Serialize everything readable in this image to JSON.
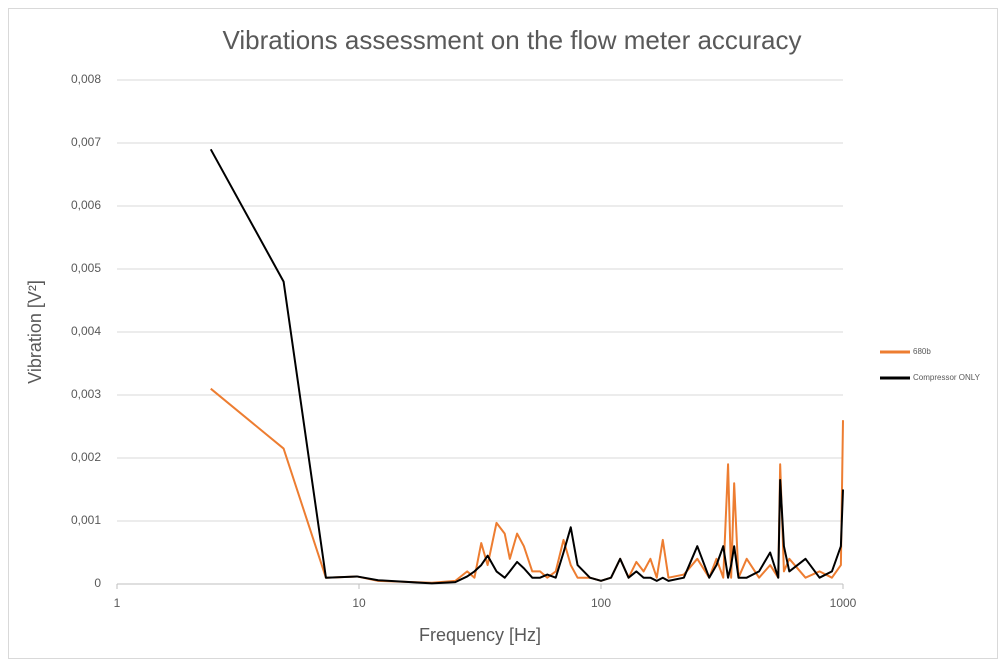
{
  "chart_data": {
    "type": "line",
    "title": "Vibrations assessment on the flow meter accuracy",
    "xlabel": "Frequency [Hz]",
    "ylabel": "Vibration [V²]",
    "xscale": "log",
    "xlim": [
      1,
      1000
    ],
    "xticks": [
      1,
      10,
      100,
      1000
    ],
    "ylim": [
      0,
      0.008
    ],
    "yticks": [
      0,
      {
        "value": 0.001,
        "label": "0,001"
      },
      {
        "value": 0.002,
        "label": "0,002"
      },
      {
        "value": 0.003,
        "label": "0,003"
      },
      {
        "value": 0.004,
        "label": "0,004"
      },
      {
        "value": 0.005,
        "label": "0,005"
      },
      {
        "value": 0.006,
        "label": "0,006"
      },
      {
        "value": 0.007,
        "label": "0,007"
      },
      {
        "value": 0.008,
        "label": "0,008"
      }
    ],
    "grid": true,
    "legend": "right",
    "x": [
      2.44,
      4.88,
      7.3,
      9.8,
      12,
      20,
      25,
      28,
      30,
      32,
      34,
      37,
      40,
      42,
      45,
      48,
      52,
      56,
      60,
      65,
      70,
      75,
      80,
      90,
      100,
      110,
      120,
      130,
      140,
      150,
      160,
      170,
      180,
      190,
      220,
      250,
      280,
      300,
      320,
      335,
      345,
      355,
      370,
      400,
      450,
      500,
      540,
      550,
      570,
      600,
      700,
      800,
      900,
      980,
      1000
    ],
    "series": [
      {
        "name": "680b",
        "color": "#ed7d31",
        "values": [
          0.0031,
          0.00215,
          0.0001,
          0.00012,
          5e-05,
          2e-05,
          5e-05,
          0.0002,
          0.0001,
          0.00065,
          0.0003,
          0.00097,
          0.0008,
          0.0004,
          0.0008,
          0.0006,
          0.0002,
          0.0002,
          0.0001,
          0.0002,
          0.0007,
          0.0003,
          0.0001,
          0.0001,
          5e-05,
          0.0001,
          0.0004,
          0.0001,
          0.00035,
          0.0002,
          0.0004,
          0.0001,
          0.0007,
          0.0001,
          0.00015,
          0.0004,
          0.0001,
          0.0004,
          0.0001,
          0.0019,
          0.0001,
          0.0016,
          0.0001,
          0.0004,
          0.0001,
          0.0003,
          0.0001,
          0.0019,
          0.0002,
          0.0004,
          0.0001,
          0.0002,
          0.0001,
          0.0003,
          0.0026
        ]
      },
      {
        "name": "Compressor ONLY",
        "color": "#000000",
        "values": [
          0.0069,
          0.0048,
          0.0001,
          0.00012,
          6e-05,
          1e-05,
          3e-05,
          0.00012,
          0.0002,
          0.0003,
          0.00045,
          0.0002,
          0.0001,
          0.0002,
          0.00035,
          0.00025,
          0.0001,
          0.0001,
          0.00015,
          0.0001,
          0.0005,
          0.0009,
          0.0003,
          0.0001,
          5e-05,
          0.0001,
          0.0004,
          0.0001,
          0.0002,
          0.0001,
          0.0001,
          5e-05,
          0.0001,
          5e-05,
          0.0001,
          0.0006,
          0.0001,
          0.0003,
          0.0006,
          0.0001,
          0.0003,
          0.0006,
          0.0001,
          0.0001,
          0.0002,
          0.0005,
          0.0001,
          0.00165,
          0.0006,
          0.0002,
          0.0004,
          0.0001,
          0.0002,
          0.0006,
          0.0015
        ]
      }
    ]
  }
}
